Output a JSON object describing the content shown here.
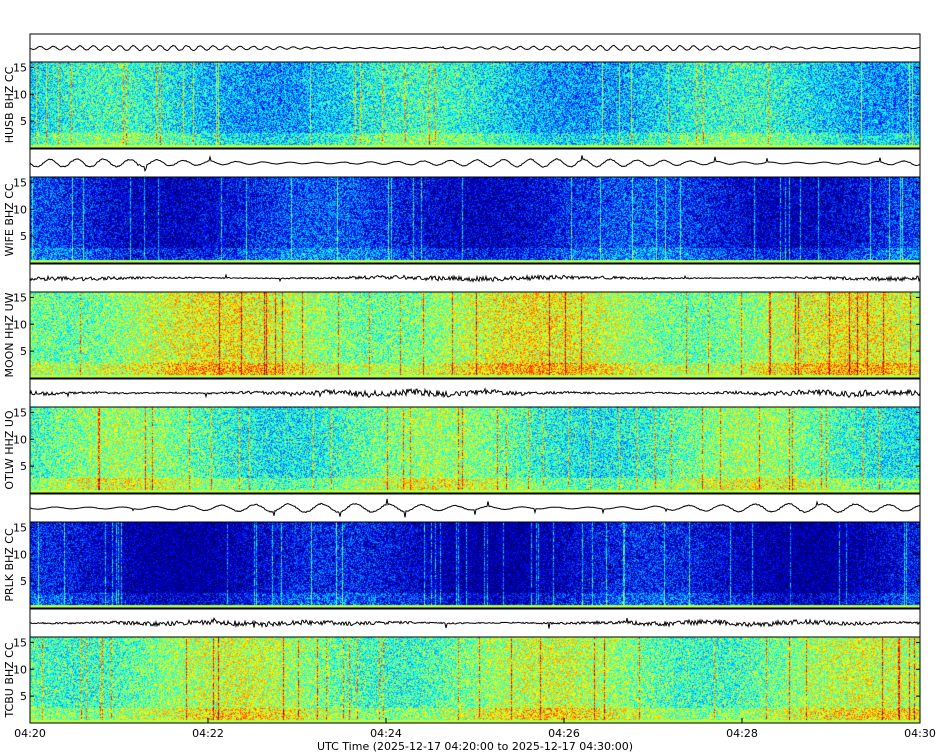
{
  "chart_data": {
    "type": "heatmap",
    "xlabel": "UTC Time (2025-12-17 04:20:00 to 2025-12-17 04:30:00)",
    "x_ticks": [
      "04:20",
      "04:22",
      "04:24",
      "04:26",
      "04:28",
      "04:30"
    ],
    "xlim_minutes": [
      0,
      10
    ],
    "ylim_hz": [
      0,
      16
    ],
    "y_ticks": [
      5,
      10,
      15
    ],
    "colormap": "jet",
    "stations": [
      {
        "label": "HUSB BHZ CC",
        "spectrogram_level": 0.35,
        "trace_amplitude": 0.35,
        "trace_period": 0.3
      },
      {
        "label": "WIFE BHZ CC",
        "spectrogram_level": 0.12,
        "trace_amplitude": 0.55,
        "trace_period": 0.15
      },
      {
        "label": "MOON HHZ UW",
        "spectrogram_level": 0.55,
        "trace_amplitude": 0.45,
        "trace_period": 0.02
      },
      {
        "label": "OTLW HHZ UO",
        "spectrogram_level": 0.45,
        "trace_amplitude": 0.6,
        "trace_period": 0.05
      },
      {
        "label": "PRLK BHZ CC",
        "spectrogram_level": 0.06,
        "trace_amplitude": 0.6,
        "trace_period": 0.12
      },
      {
        "label": "TCBU BHZ CC",
        "spectrogram_level": 0.5,
        "trace_amplitude": 0.5,
        "trace_period": 0.04
      }
    ]
  }
}
